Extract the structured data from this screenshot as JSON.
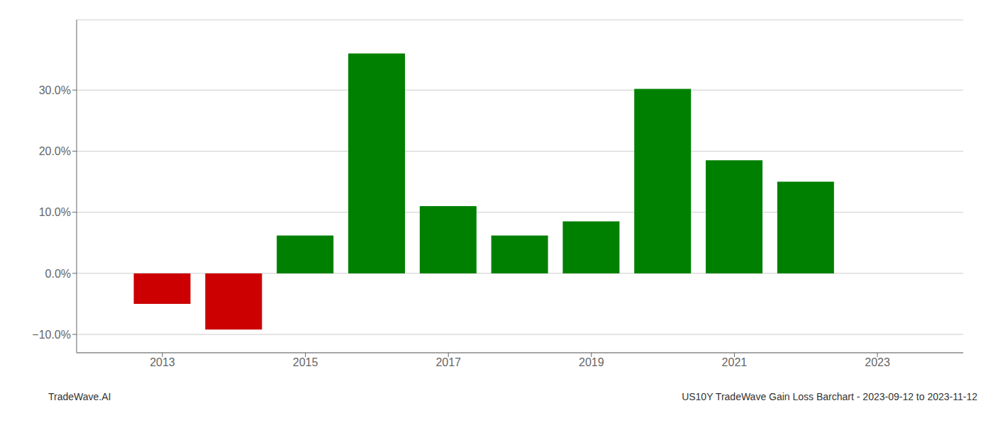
{
  "chart_data": {
    "type": "bar",
    "x": [
      2013,
      2014,
      2015,
      2016,
      2017,
      2018,
      2019,
      2020,
      2021,
      2022
    ],
    "values": [
      -0.05,
      -0.092,
      0.062,
      0.36,
      0.11,
      0.062,
      0.085,
      0.302,
      0.185,
      0.15
    ],
    "colors": [
      "#cc0000",
      "#cc0000",
      "#008000",
      "#008000",
      "#008000",
      "#008000",
      "#008000",
      "#008000",
      "#008000",
      "#008000"
    ],
    "xlim": [
      2011.8,
      2024.2
    ],
    "xticks": [
      2013,
      2015,
      2017,
      2019,
      2021,
      2023
    ],
    "ylim": [
      -0.13,
      0.415
    ],
    "yticks": [
      {
        "value": -0.1,
        "label": "−10.0%"
      },
      {
        "value": 0.0,
        "label": "0.0%"
      },
      {
        "value": 0.1,
        "label": "10.0%"
      },
      {
        "value": 0.2,
        "label": "20.0%"
      },
      {
        "value": 0.3,
        "label": "30.0%"
      }
    ],
    "grid": true,
    "annotations": [
      "TradeWave.AI",
      "US10Y TradeWave Gain Loss Barchart - 2023-09-12 to 2023-11-12"
    ]
  }
}
